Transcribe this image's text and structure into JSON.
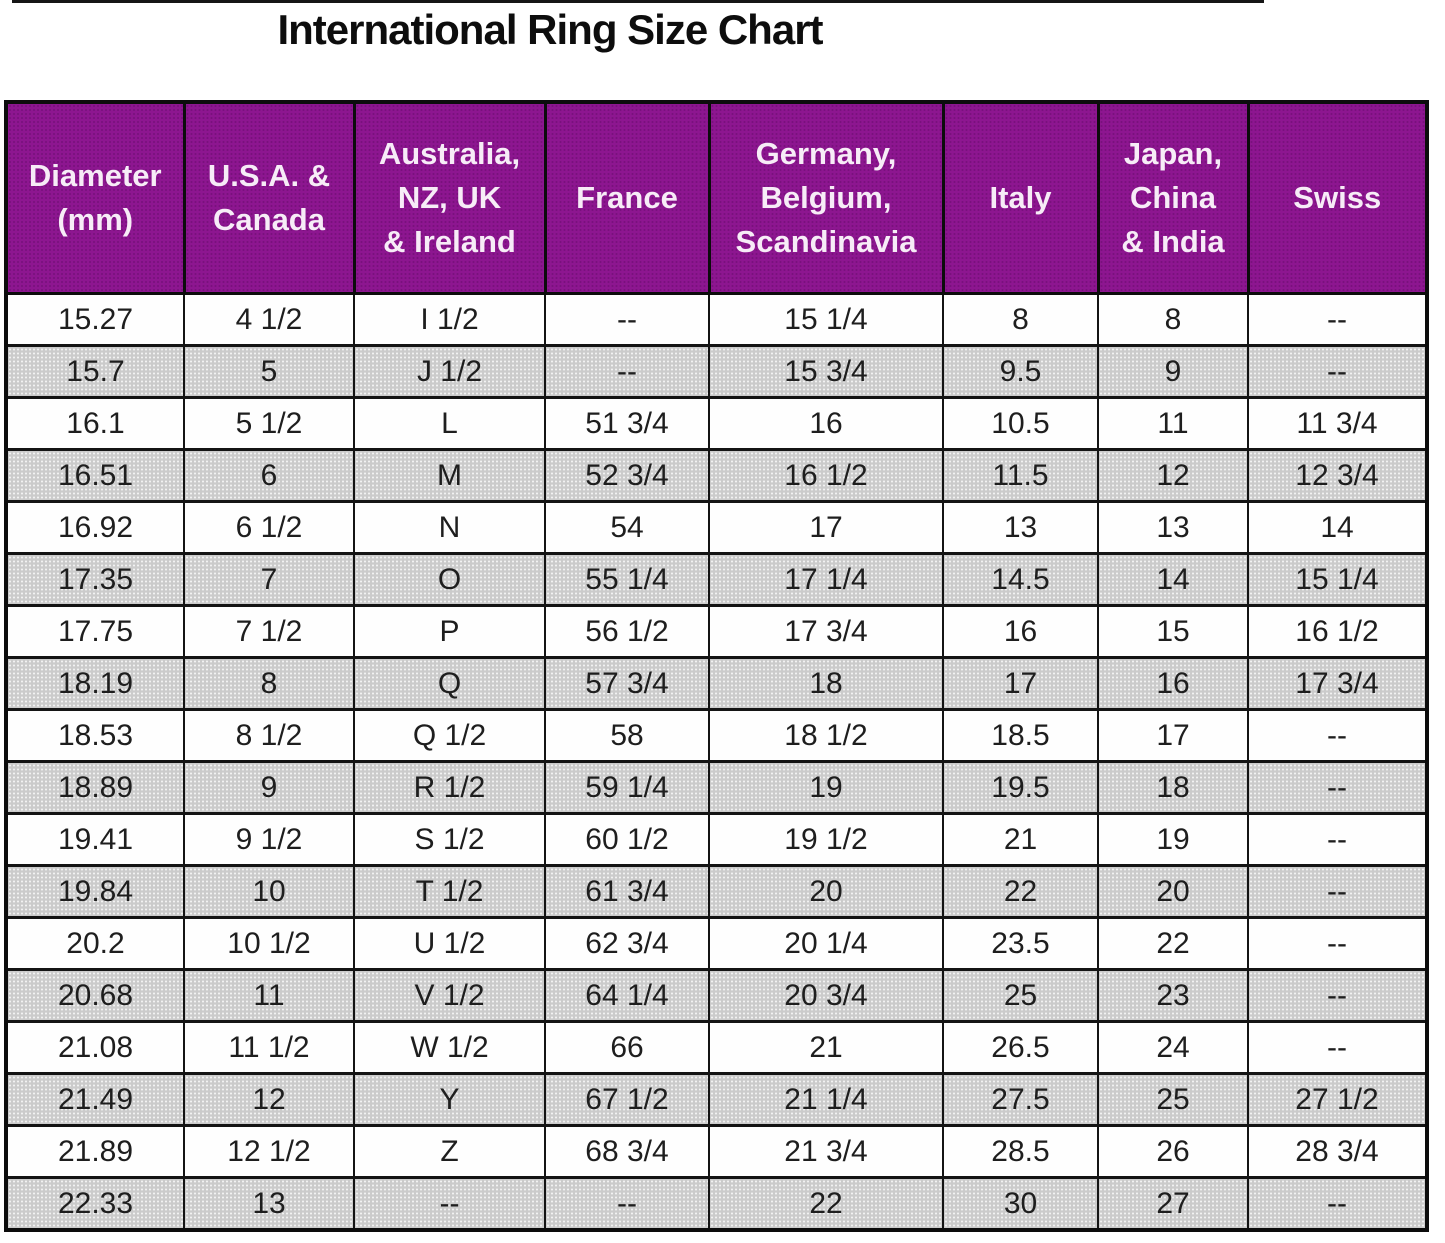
{
  "colors": {
    "header_bg": "#8d1690",
    "header_text": "#f7ecf7",
    "stripe_row_bg": "#cbcbcb",
    "plain_row_bg": "#fefefe",
    "border": "#0c0c0c",
    "cell_text": "#1e1e1e"
  },
  "chart_data": {
    "type": "table",
    "title": "International Ring Size Chart",
    "columns": [
      "Diameter\n(mm)",
      "U.S.A. &\nCanada",
      "Australia,\nNZ, UK\n& Ireland",
      "France",
      "Germany,\nBelgium,\nScandinavia",
      "Italy",
      "Japan,\nChina\n& India",
      "Swiss"
    ],
    "rows": [
      [
        "15.27",
        "4 1/2",
        "I 1/2",
        "--",
        "15 1/4",
        "8",
        "8",
        "--"
      ],
      [
        "15.7",
        "5",
        "J 1/2",
        "--",
        "15 3/4",
        "9.5",
        "9",
        "--"
      ],
      [
        "16.1",
        "5 1/2",
        "L",
        "51 3/4",
        "16",
        "10.5",
        "11",
        "11 3/4"
      ],
      [
        "16.51",
        "6",
        "M",
        "52 3/4",
        "16 1/2",
        "11.5",
        "12",
        "12 3/4"
      ],
      [
        "16.92",
        "6 1/2",
        "N",
        "54",
        "17",
        "13",
        "13",
        "14"
      ],
      [
        "17.35",
        "7",
        "O",
        "55 1/4",
        "17 1/4",
        "14.5",
        "14",
        "15 1/4"
      ],
      [
        "17.75",
        "7 1/2",
        "P",
        "56 1/2",
        "17 3/4",
        "16",
        "15",
        "16 1/2"
      ],
      [
        "18.19",
        "8",
        "Q",
        "57 3/4",
        "18",
        "17",
        "16",
        "17 3/4"
      ],
      [
        "18.53",
        "8 1/2",
        "Q 1/2",
        "58",
        "18 1/2",
        "18.5",
        "17",
        "--"
      ],
      [
        "18.89",
        "9",
        "R 1/2",
        "59 1/4",
        "19",
        "19.5",
        "18",
        "--"
      ],
      [
        "19.41",
        "9 1/2",
        "S 1/2",
        "60 1/2",
        "19 1/2",
        "21",
        "19",
        "--"
      ],
      [
        "19.84",
        "10",
        "T 1/2",
        "61 3/4",
        "20",
        "22",
        "20",
        "--"
      ],
      [
        "20.2",
        "10 1/2",
        "U 1/2",
        "62 3/4",
        "20 1/4",
        "23.5",
        "22",
        "--"
      ],
      [
        "20.68",
        "11",
        "V 1/2",
        "64 1/4",
        "20 3/4",
        "25",
        "23",
        "--"
      ],
      [
        "21.08",
        "11 1/2",
        "W 1/2",
        "66",
        "21",
        "26.5",
        "24",
        "--"
      ],
      [
        "21.49",
        "12",
        "Y",
        "67 1/2",
        "21 1/4",
        "27.5",
        "25",
        "27 1/2"
      ],
      [
        "21.89",
        "12 1/2",
        "Z",
        "68 3/4",
        "21 3/4",
        "28.5",
        "26",
        "28 3/4"
      ],
      [
        "22.33",
        "13",
        "--",
        "--",
        "22",
        "30",
        "27",
        "--"
      ]
    ]
  }
}
